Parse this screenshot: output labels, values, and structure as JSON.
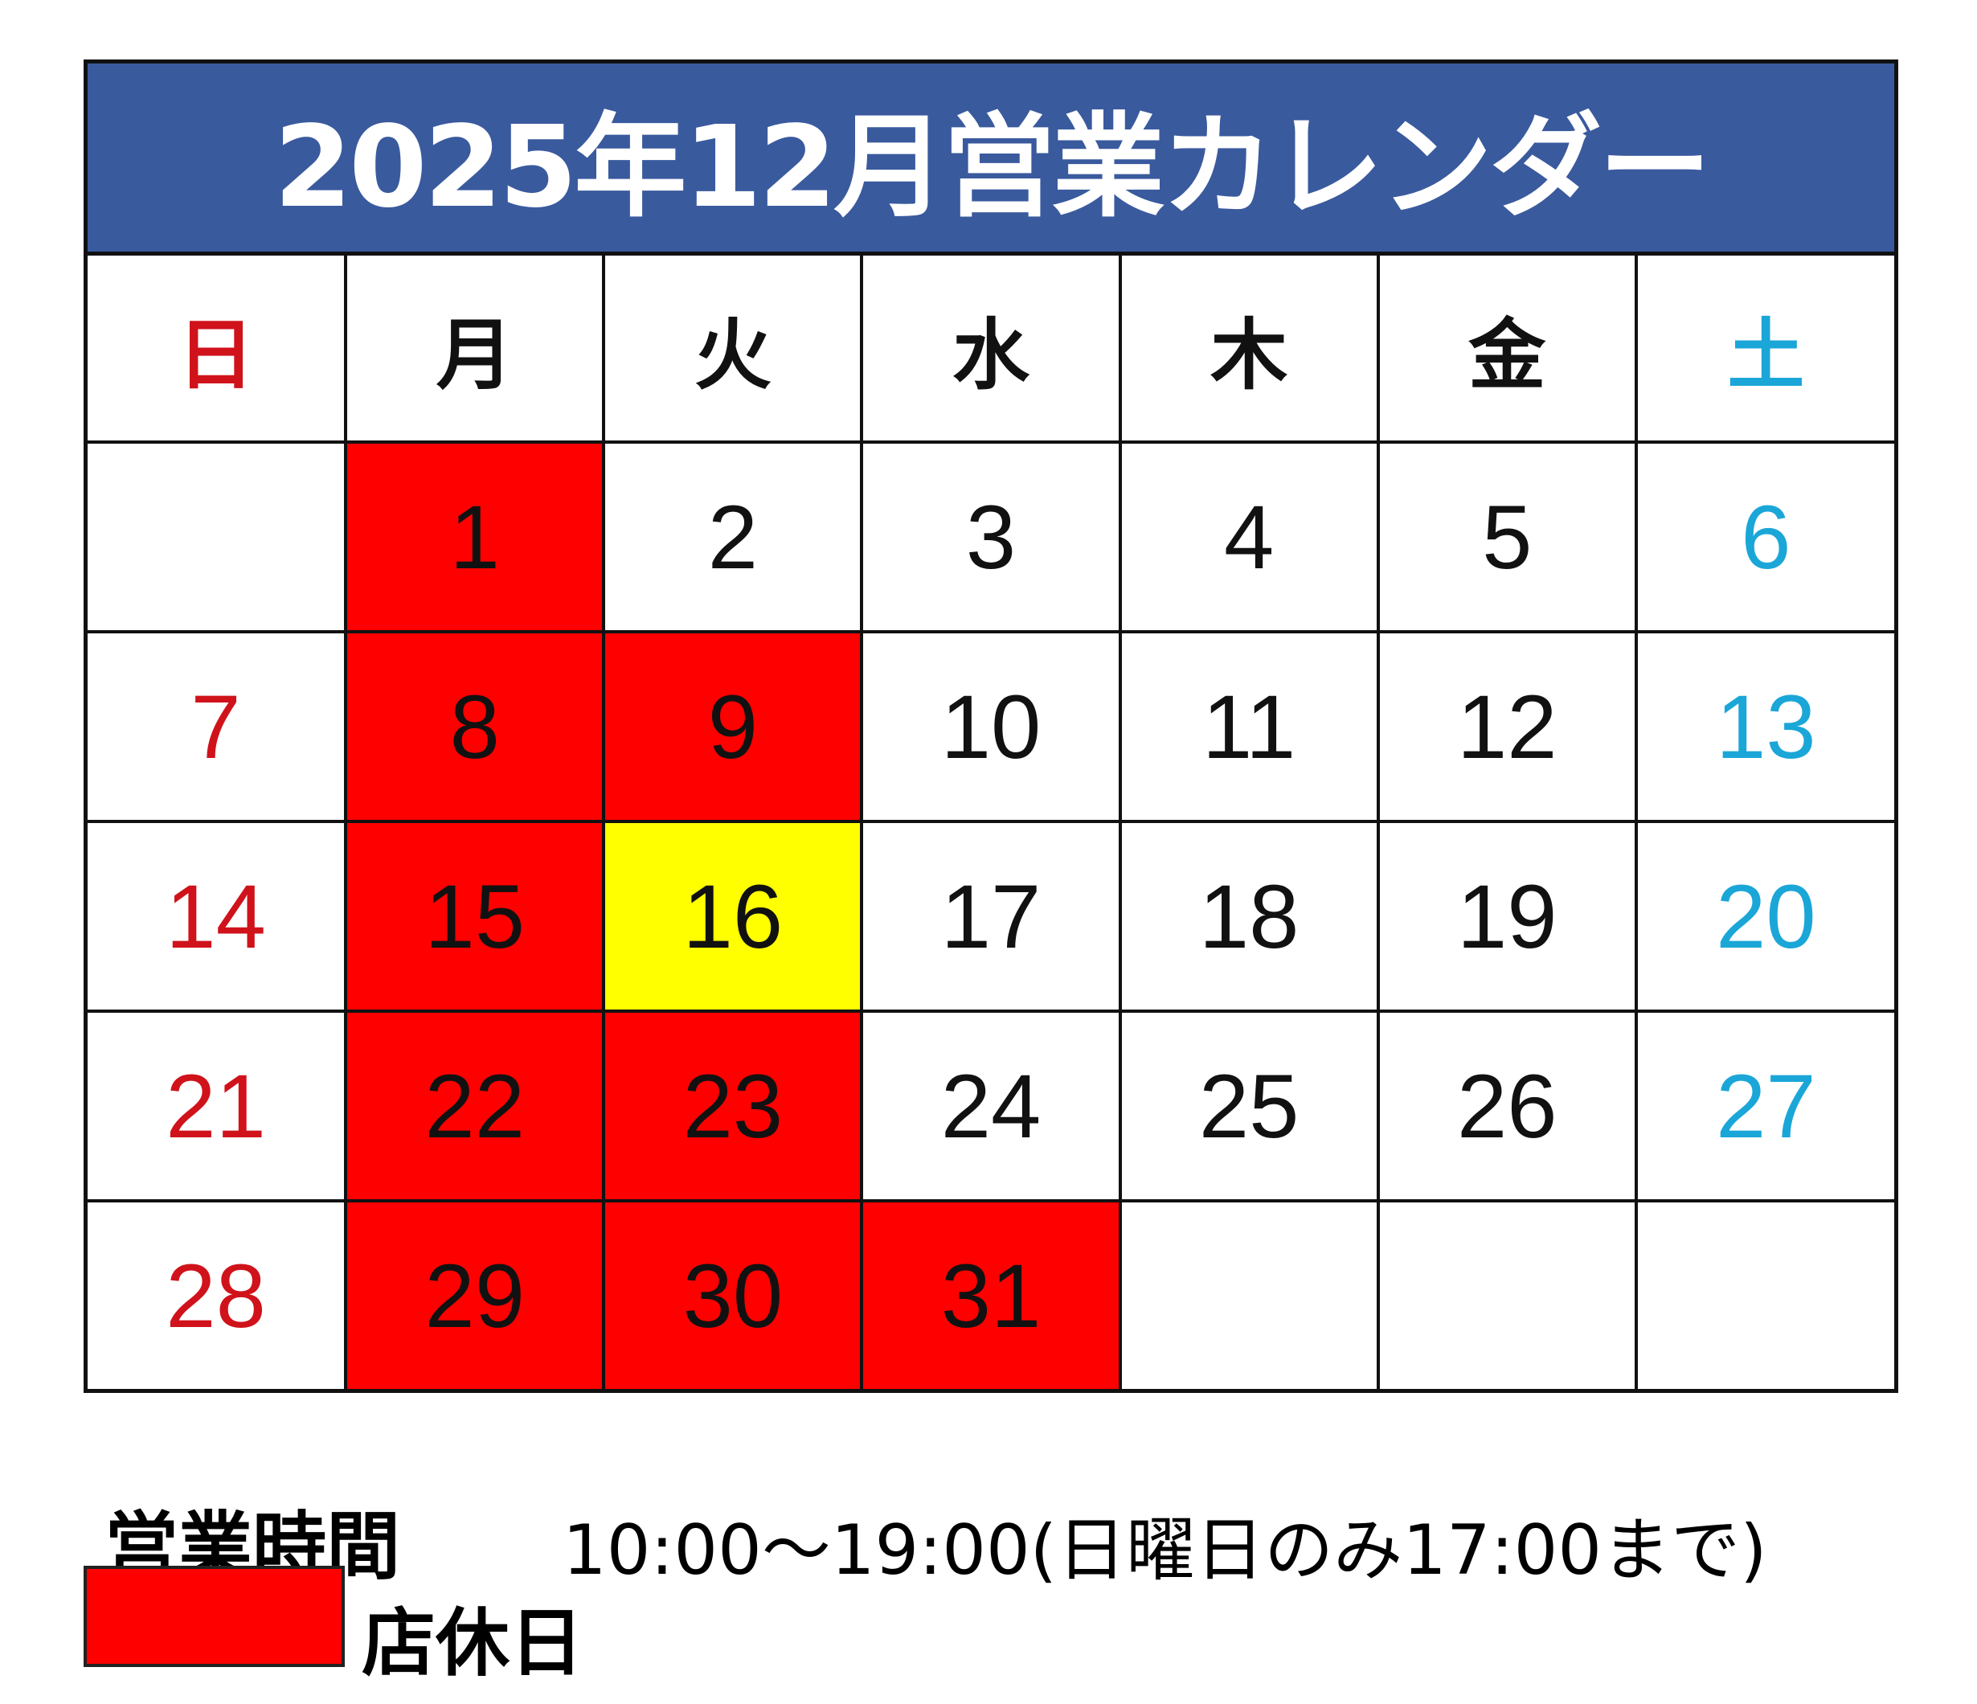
{
  "title": "2025年12月営業カレンダー",
  "colors": {
    "header_bg": "#3A5A9E",
    "closed": "#FF0000",
    "special": "#FFFF00",
    "sunday_text": "#D0121B",
    "saturday_text": "#1BA6D8",
    "weekday_text": "#111111"
  },
  "weekdays": [
    "日",
    "月",
    "火",
    "水",
    "木",
    "金",
    "土"
  ],
  "weeks": [
    [
      {
        "day": ""
      },
      {
        "day": "1",
        "status": "closed"
      },
      {
        "day": "2"
      },
      {
        "day": "3"
      },
      {
        "day": "4"
      },
      {
        "day": "5"
      },
      {
        "day": "6"
      }
    ],
    [
      {
        "day": "7"
      },
      {
        "day": "8",
        "status": "closed"
      },
      {
        "day": "9",
        "status": "closed"
      },
      {
        "day": "10"
      },
      {
        "day": "11"
      },
      {
        "day": "12"
      },
      {
        "day": "13"
      }
    ],
    [
      {
        "day": "14"
      },
      {
        "day": "15",
        "status": "closed"
      },
      {
        "day": "16",
        "status": "special"
      },
      {
        "day": "17"
      },
      {
        "day": "18"
      },
      {
        "day": "19"
      },
      {
        "day": "20"
      }
    ],
    [
      {
        "day": "21"
      },
      {
        "day": "22",
        "status": "closed"
      },
      {
        "day": "23",
        "status": "closed"
      },
      {
        "day": "24"
      },
      {
        "day": "25"
      },
      {
        "day": "26"
      },
      {
        "day": "27"
      }
    ],
    [
      {
        "day": "28"
      },
      {
        "day": "29",
        "status": "closed"
      },
      {
        "day": "30",
        "status": "closed"
      },
      {
        "day": "31",
        "status": "closed"
      },
      {
        "day": ""
      },
      {
        "day": ""
      },
      {
        "day": ""
      }
    ]
  ],
  "legend": {
    "hours_label": "営業時間",
    "hours_value": "10:00～19:00(日曜日のみ17:00まで)",
    "closed_label": "店休日"
  }
}
